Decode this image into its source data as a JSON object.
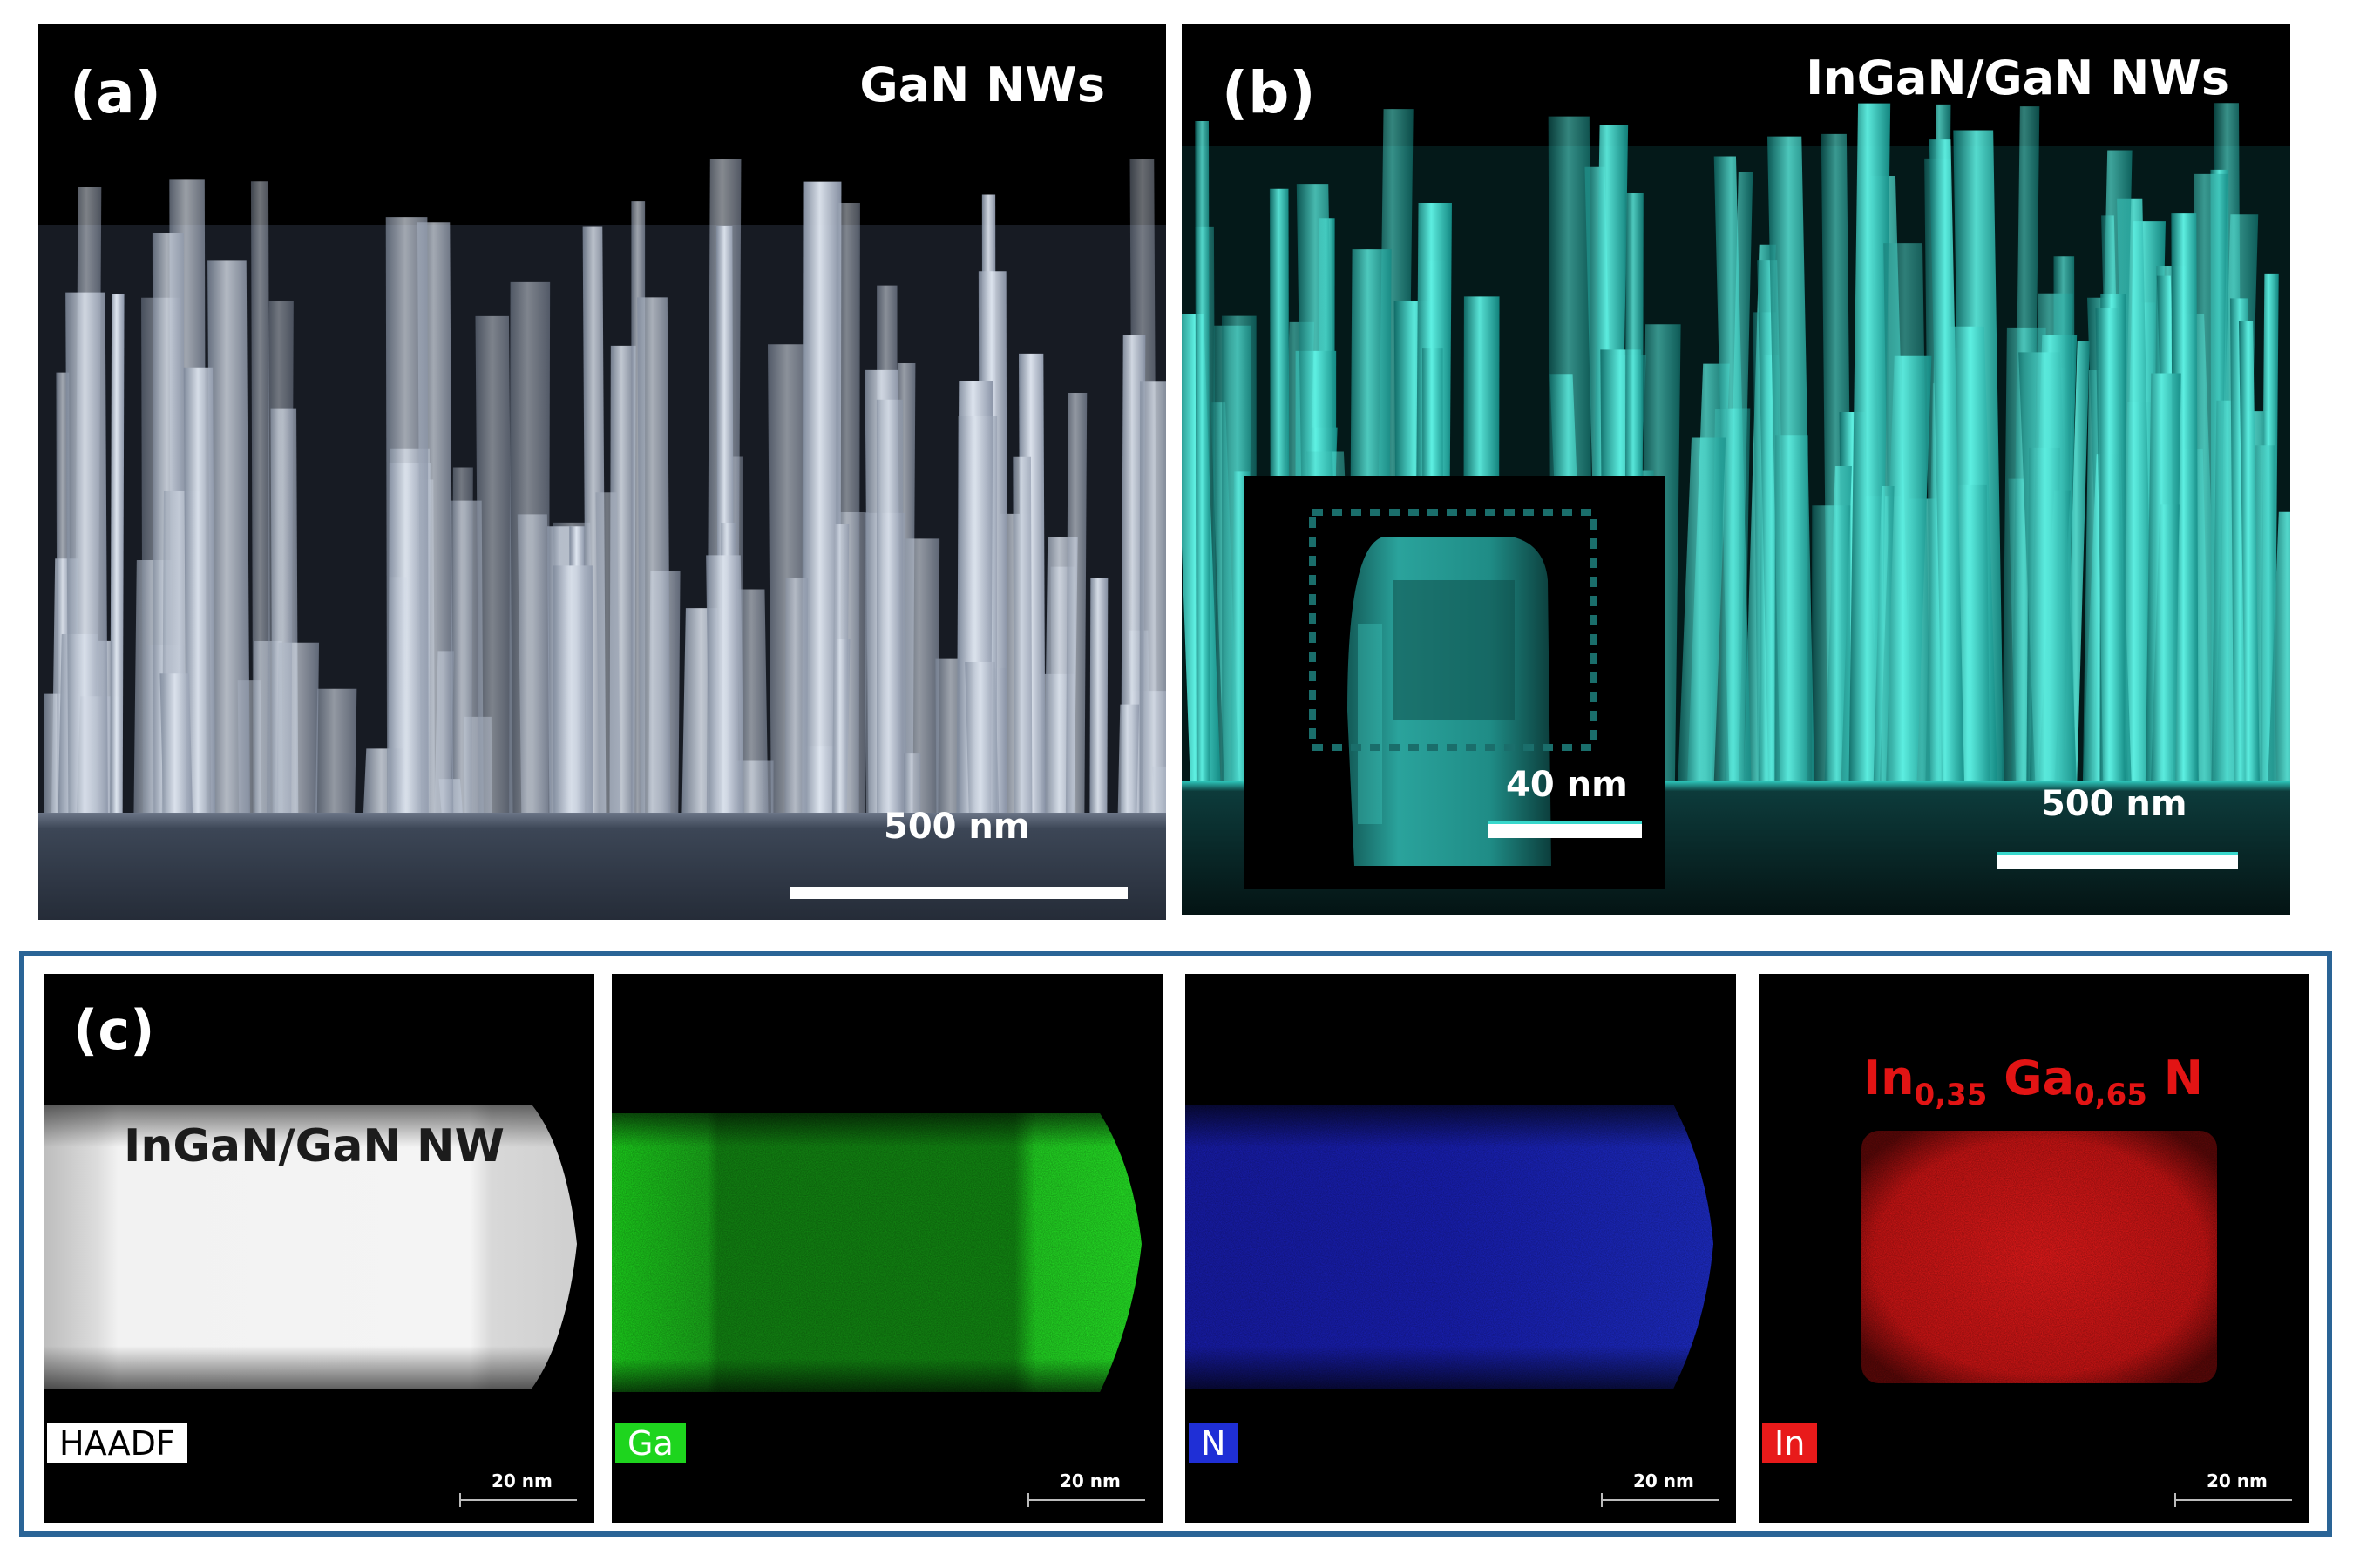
{
  "panel_a": {
    "letter": "(a)",
    "title": "GaN NWs",
    "scalebar_label": "500 nm",
    "colors": {
      "wire": "#c9d3e2",
      "wire_dark": "#7c8799",
      "substrate": "#3c4656"
    }
  },
  "panel_b": {
    "letter": "(b)",
    "title": "InGaN/GaN NWs",
    "scalebar_label": "500 nm",
    "inset_scalebar_label": "40 nm",
    "colors": {
      "wire": "#38d8cc",
      "wire_dark": "#0f6a66",
      "substrate": "#0a2a2a"
    }
  },
  "panel_c": {
    "letter": "(c)",
    "haadf_caption": "InGaN/GaN NW",
    "composition": {
      "in": "In",
      "in_sub": "0,35",
      "ga": "Ga",
      "ga_sub": "0,65",
      "n": "N"
    },
    "maps": [
      {
        "tag": "HAADF",
        "scale": "20 nm",
        "tag_bg": "#ffffff",
        "tag_fg": "#000000"
      },
      {
        "tag": "Ga",
        "scale": "20 nm",
        "tag_bg": "#1ed51e",
        "tag_fg": "#ffffff"
      },
      {
        "tag": "N",
        "scale": "20 nm",
        "tag_bg": "#1f2fd6",
        "tag_fg": "#ffffff"
      },
      {
        "tag": "In",
        "scale": "20 nm",
        "tag_bg": "#e81a1a",
        "tag_fg": "#ffffff"
      }
    ],
    "colors": {
      "frame": "#2a6496",
      "composition_text": "#e21414"
    }
  }
}
